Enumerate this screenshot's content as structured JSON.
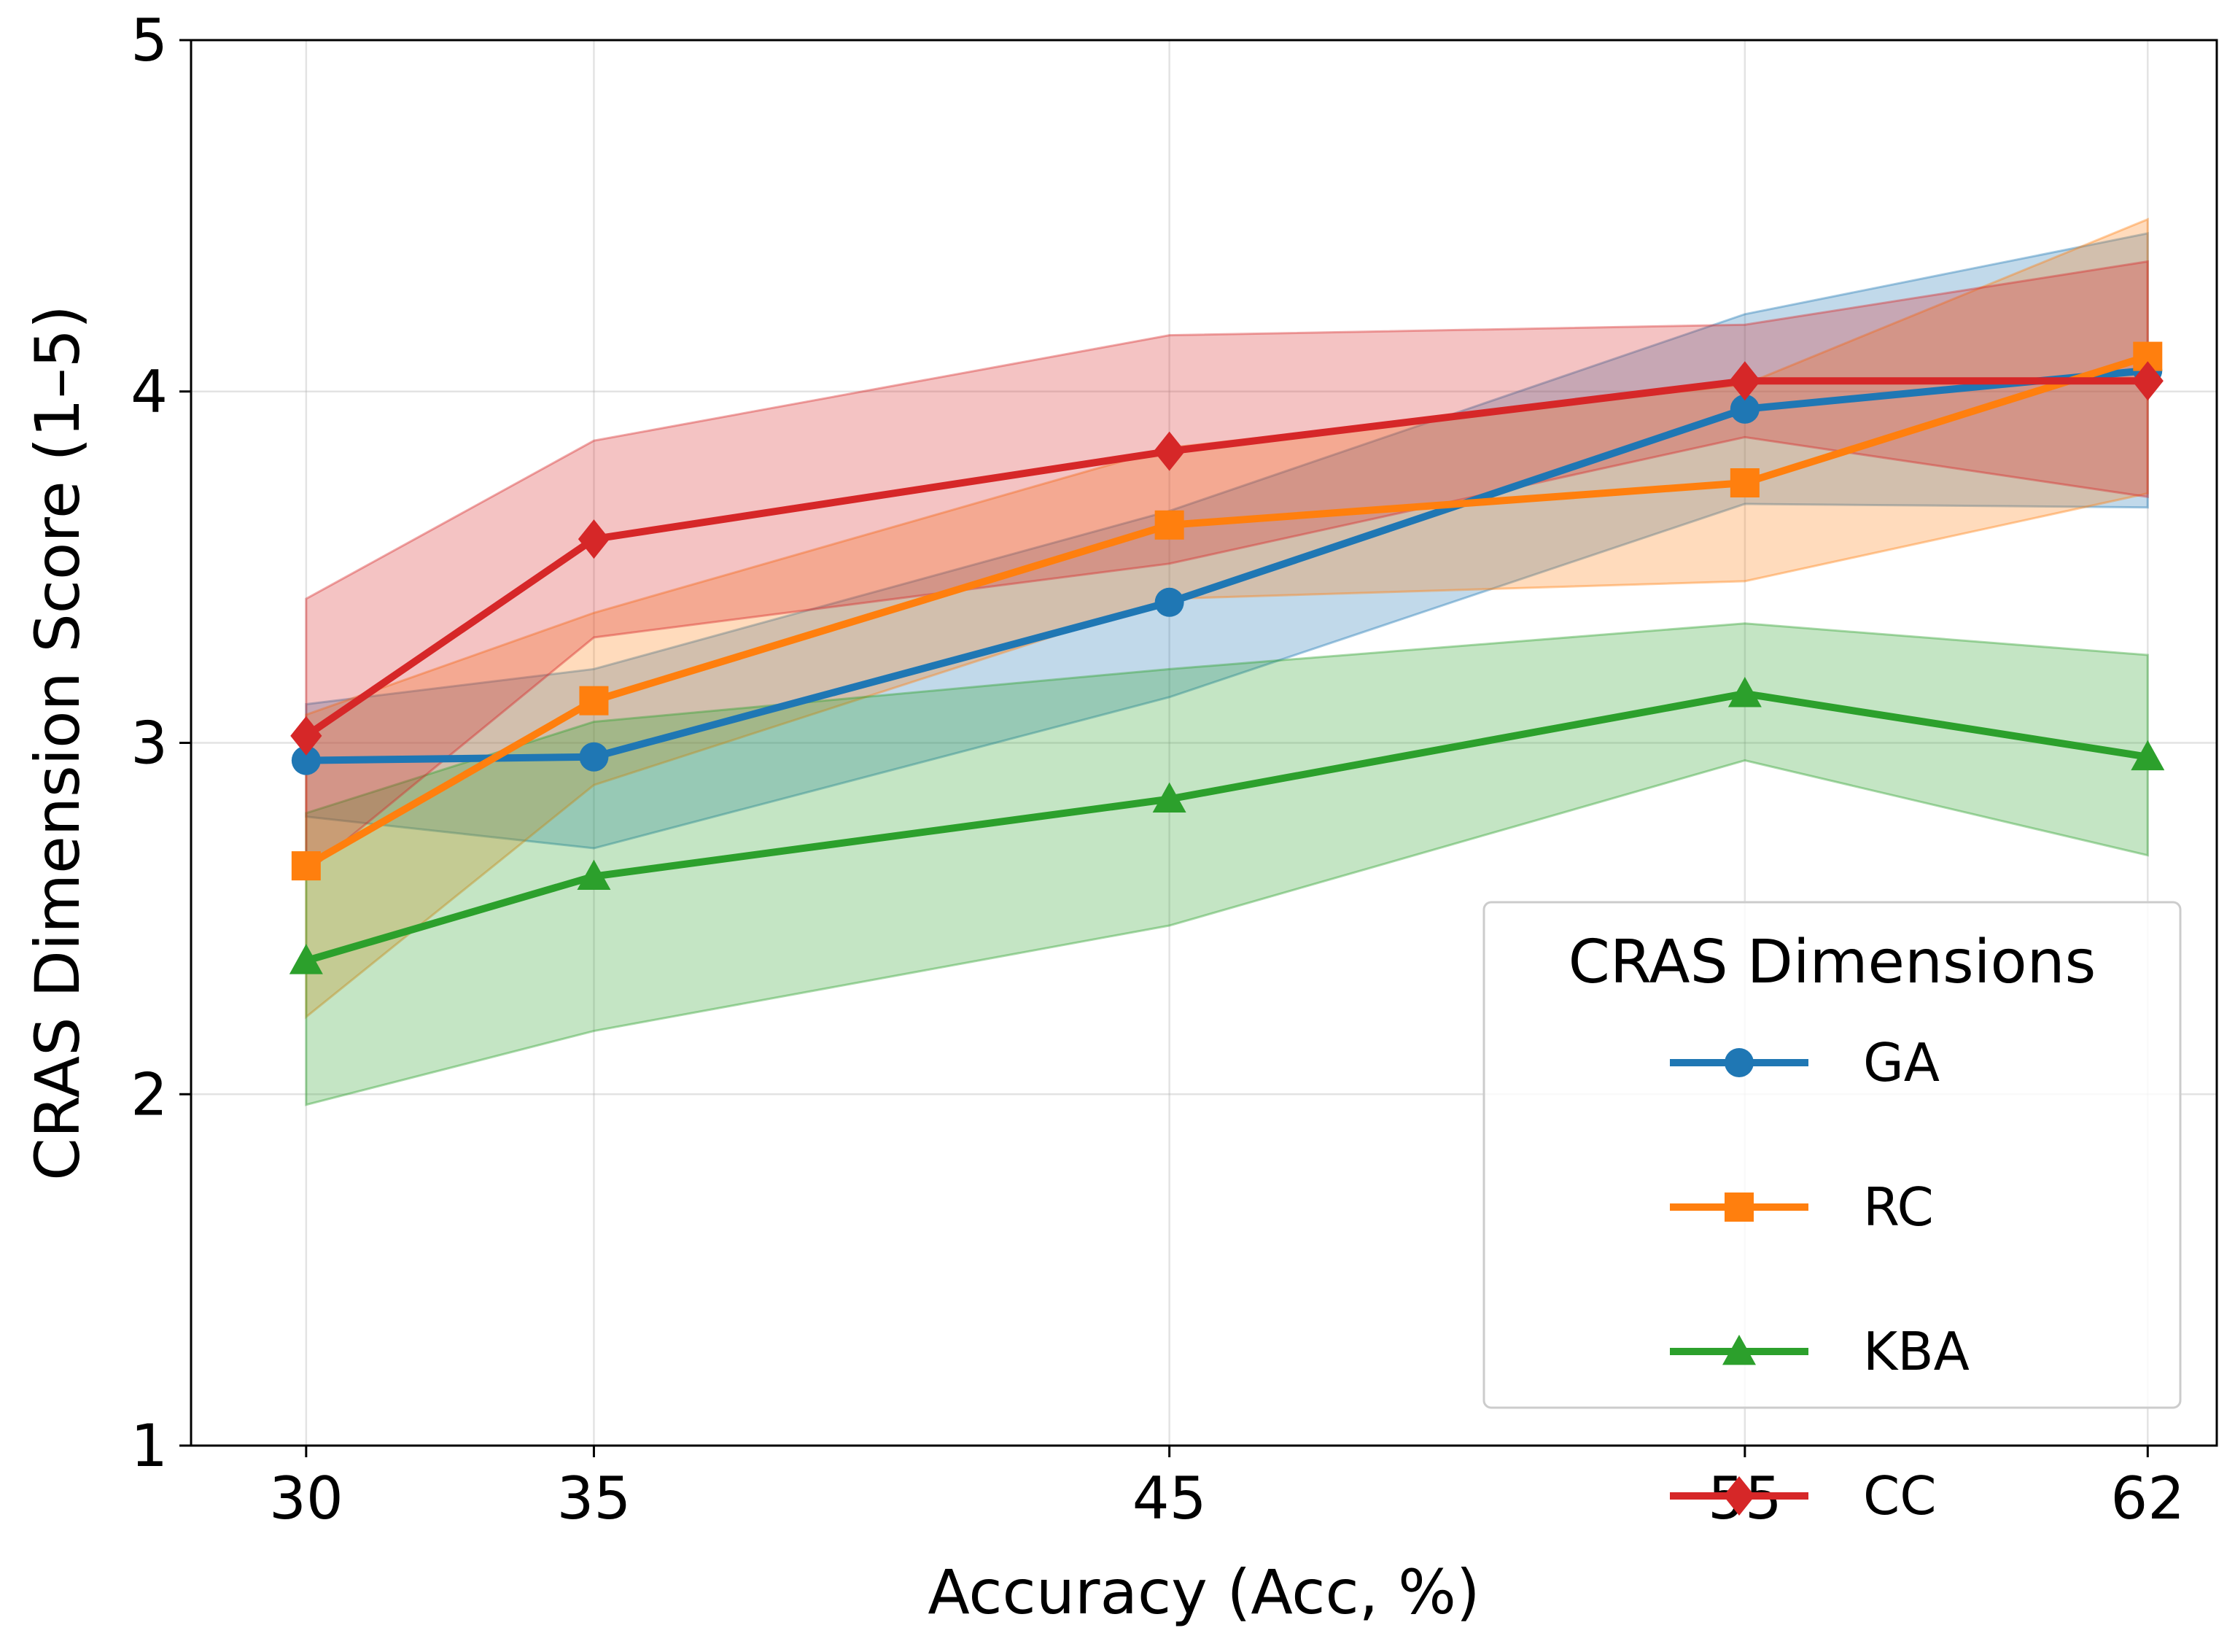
{
  "chart_data": {
    "type": "line",
    "title": "",
    "xlabel": "Accuracy (Acc, %)",
    "ylabel": "CRAS Dimension Score (1–5)",
    "x": [
      30,
      35,
      45,
      55,
      62
    ],
    "xticks": [
      "30",
      "35",
      "45",
      "55",
      "62"
    ],
    "yticks": [
      "1",
      "2",
      "3",
      "4",
      "5"
    ],
    "xlim": [
      28,
      63.2
    ],
    "ylim": [
      1,
      5
    ],
    "grid": true,
    "legend": {
      "title": "CRAS Dimensions",
      "position": "lower-right"
    },
    "series": [
      {
        "name": "GA",
        "color": "#1f77b4",
        "marker": "circle",
        "values": [
          2.95,
          2.96,
          3.4,
          3.95,
          4.06
        ],
        "lower": [
          2.79,
          2.7,
          3.13,
          3.68,
          3.67
        ],
        "upper": [
          3.11,
          3.21,
          3.66,
          4.22,
          4.45
        ]
      },
      {
        "name": "RC",
        "color": "#ff7f0e",
        "marker": "square",
        "values": [
          2.65,
          3.12,
          3.62,
          3.74,
          4.1
        ],
        "lower": [
          2.22,
          2.88,
          3.41,
          3.46,
          3.71
        ],
        "upper": [
          3.08,
          3.37,
          3.84,
          4.02,
          4.49
        ]
      },
      {
        "name": "KBA",
        "color": "#2ca02c",
        "marker": "triangle",
        "values": [
          2.38,
          2.62,
          2.84,
          3.14,
          2.96
        ],
        "lower": [
          1.97,
          2.18,
          2.48,
          2.95,
          2.68
        ],
        "upper": [
          2.8,
          3.06,
          3.21,
          3.34,
          3.25
        ]
      },
      {
        "name": "CC",
        "color": "#d62728",
        "marker": "diamond",
        "values": [
          3.02,
          3.58,
          3.83,
          4.03,
          4.03
        ],
        "lower": [
          2.63,
          3.3,
          3.51,
          3.87,
          3.7
        ],
        "upper": [
          3.41,
          3.86,
          4.16,
          4.19,
          4.37
        ]
      }
    ]
  }
}
